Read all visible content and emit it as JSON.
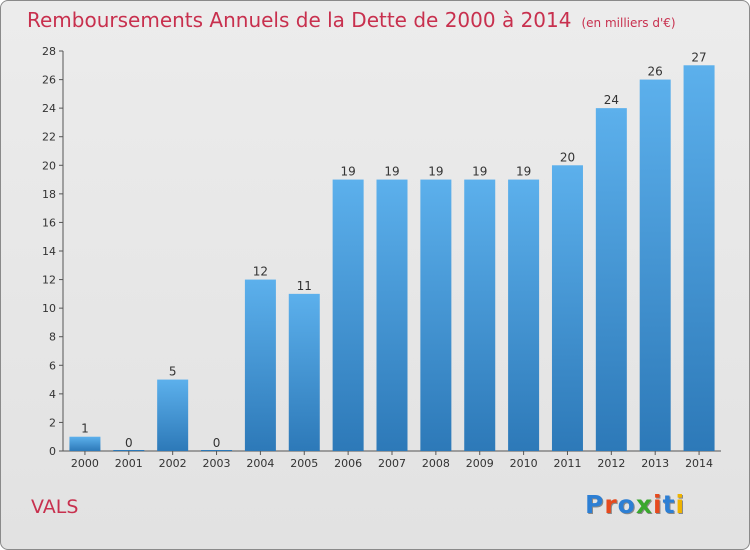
{
  "header": {
    "title": "Remboursements Annuels de la Dette de 2000 à 2014",
    "unit": "(en milliers d'€)"
  },
  "footer": {
    "city": "VALS",
    "logo": "Proxiti",
    "logo_colors": [
      "#2d7fd4",
      "#e64a1e",
      "#2d7fd4",
      "#3aa82e",
      "#e64a1e",
      "#2d7fd4",
      "#f0b400"
    ]
  },
  "colors": {
    "bar_top": "#5cb0ec",
    "bar_bottom": "#2d79b8",
    "title": "#c8304e"
  },
  "chart_data": {
    "type": "bar",
    "title": "Remboursements Annuels de la Dette de 2000 à 2014",
    "categories": [
      "2000",
      "2001",
      "2002",
      "2003",
      "2004",
      "2005",
      "2006",
      "2007",
      "2008",
      "2009",
      "2010",
      "2011",
      "2012",
      "2013",
      "2014"
    ],
    "values": [
      1,
      0,
      5,
      0,
      12,
      11,
      19,
      19,
      19,
      19,
      19,
      20,
      24,
      26,
      27
    ],
    "ylim": [
      0,
      28
    ],
    "yticks": [
      0,
      2,
      4,
      6,
      8,
      10,
      12,
      14,
      16,
      18,
      20,
      22,
      24,
      26,
      28
    ],
    "grid": false,
    "data_labels": true
  }
}
